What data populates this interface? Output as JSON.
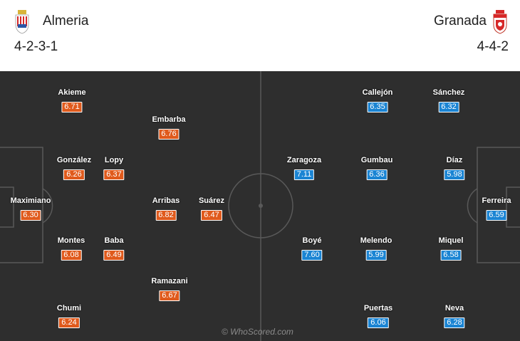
{
  "home": {
    "name": "Almeria",
    "formation": "4-2-3-1",
    "rating_color": "#e05a1c",
    "crest_icon": "almeria-crest-icon",
    "players": [
      {
        "name": "Akieme",
        "rating": "6.71"
      },
      {
        "name": "Embarba",
        "rating": "6.76"
      },
      {
        "name": "González",
        "rating": "6.26"
      },
      {
        "name": "Lopy",
        "rating": "6.37"
      },
      {
        "name": "Maximiano",
        "rating": "6.30"
      },
      {
        "name": "Arribas",
        "rating": "6.82"
      },
      {
        "name": "Suárez",
        "rating": "6.47"
      },
      {
        "name": "Montes",
        "rating": "6.08"
      },
      {
        "name": "Baba",
        "rating": "6.49"
      },
      {
        "name": "Ramazani",
        "rating": "6.67"
      },
      {
        "name": "Chumi",
        "rating": "6.24"
      }
    ]
  },
  "away": {
    "name": "Granada",
    "formation": "4-4-2",
    "rating_color": "#1a84d3",
    "crest_icon": "granada-crest-icon",
    "players": [
      {
        "name": "Callejón",
        "rating": "6.35"
      },
      {
        "name": "Sánchez",
        "rating": "6.32"
      },
      {
        "name": "Zaragoza",
        "rating": "7.11"
      },
      {
        "name": "Gumbau",
        "rating": "6.36"
      },
      {
        "name": "Díaz",
        "rating": "5.98"
      },
      {
        "name": "Ferreira",
        "rating": "6.59"
      },
      {
        "name": "Boyé",
        "rating": "7.60"
      },
      {
        "name": "Melendo",
        "rating": "5.99"
      },
      {
        "name": "Miquel",
        "rating": "6.58"
      },
      {
        "name": "Puertas",
        "rating": "6.06"
      },
      {
        "name": "Neva",
        "rating": "6.28"
      }
    ]
  },
  "pitch_color": "#2e2e2e",
  "watermark": "© WhoScored.com"
}
